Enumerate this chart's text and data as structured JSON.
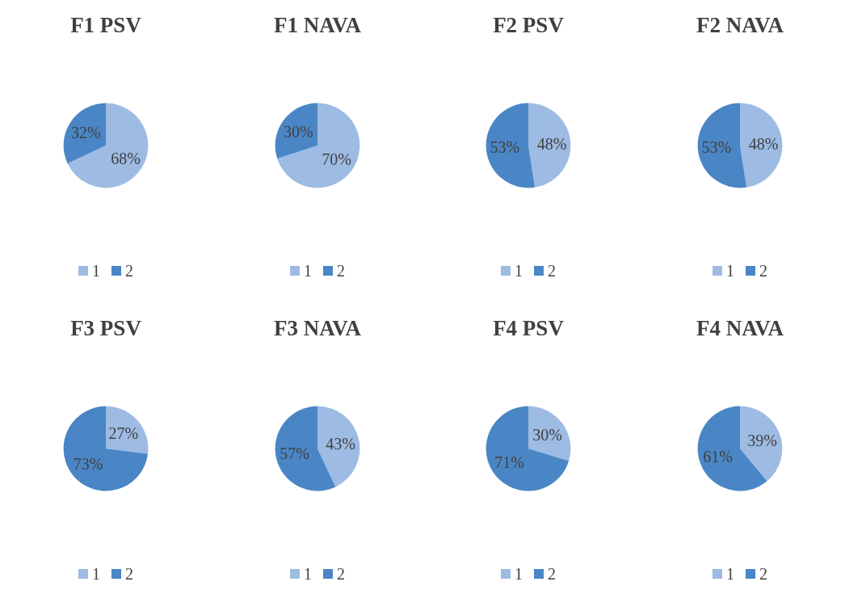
{
  "chart_data": [
    {
      "type": "pie",
      "title": "F1 PSV",
      "categories": [
        "1",
        "2"
      ],
      "values": [
        68,
        32
      ],
      "value_labels": [
        "68%",
        "32%"
      ],
      "colors": [
        "#9dbbe3",
        "#4a86c5"
      ],
      "legend": "bottom"
    },
    {
      "type": "pie",
      "title": "F1 NAVA",
      "categories": [
        "1",
        "2"
      ],
      "values": [
        70,
        30
      ],
      "value_labels": [
        "70%",
        "30%"
      ],
      "colors": [
        "#9dbbe3",
        "#4a86c5"
      ],
      "legend": "bottom"
    },
    {
      "type": "pie",
      "title": "F2 PSV",
      "categories": [
        "1",
        "2"
      ],
      "values": [
        48,
        53
      ],
      "value_labels": [
        "48%",
        "53%"
      ],
      "colors": [
        "#9dbbe3",
        "#4a86c5"
      ],
      "legend": "bottom"
    },
    {
      "type": "pie",
      "title": "F2 NAVA",
      "categories": [
        "1",
        "2"
      ],
      "values": [
        48,
        53
      ],
      "value_labels": [
        "48%",
        "53%"
      ],
      "colors": [
        "#9dbbe3",
        "#4a86c5"
      ],
      "legend": "bottom"
    },
    {
      "type": "pie",
      "title": "F3 PSV",
      "categories": [
        "1",
        "2"
      ],
      "values": [
        27,
        73
      ],
      "value_labels": [
        "27%",
        "73%"
      ],
      "colors": [
        "#9dbbe3",
        "#4a86c5"
      ],
      "legend": "bottom"
    },
    {
      "type": "pie",
      "title": "F3 NAVA",
      "categories": [
        "1",
        "2"
      ],
      "values": [
        43,
        57
      ],
      "value_labels": [
        "43%",
        "57%"
      ],
      "colors": [
        "#9dbbe3",
        "#4a86c5"
      ],
      "legend": "bottom"
    },
    {
      "type": "pie",
      "title": "F4 PSV",
      "categories": [
        "1",
        "2"
      ],
      "values": [
        30,
        71
      ],
      "value_labels": [
        "30%",
        "71%"
      ],
      "colors": [
        "#9dbbe3",
        "#4a86c5"
      ],
      "legend": "bottom"
    },
    {
      "type": "pie",
      "title": "F4 NAVA",
      "categories": [
        "1",
        "2"
      ],
      "values": [
        39,
        61
      ],
      "value_labels": [
        "39%",
        "61%"
      ],
      "colors": [
        "#9dbbe3",
        "#4a86c5"
      ],
      "legend": "bottom"
    }
  ]
}
